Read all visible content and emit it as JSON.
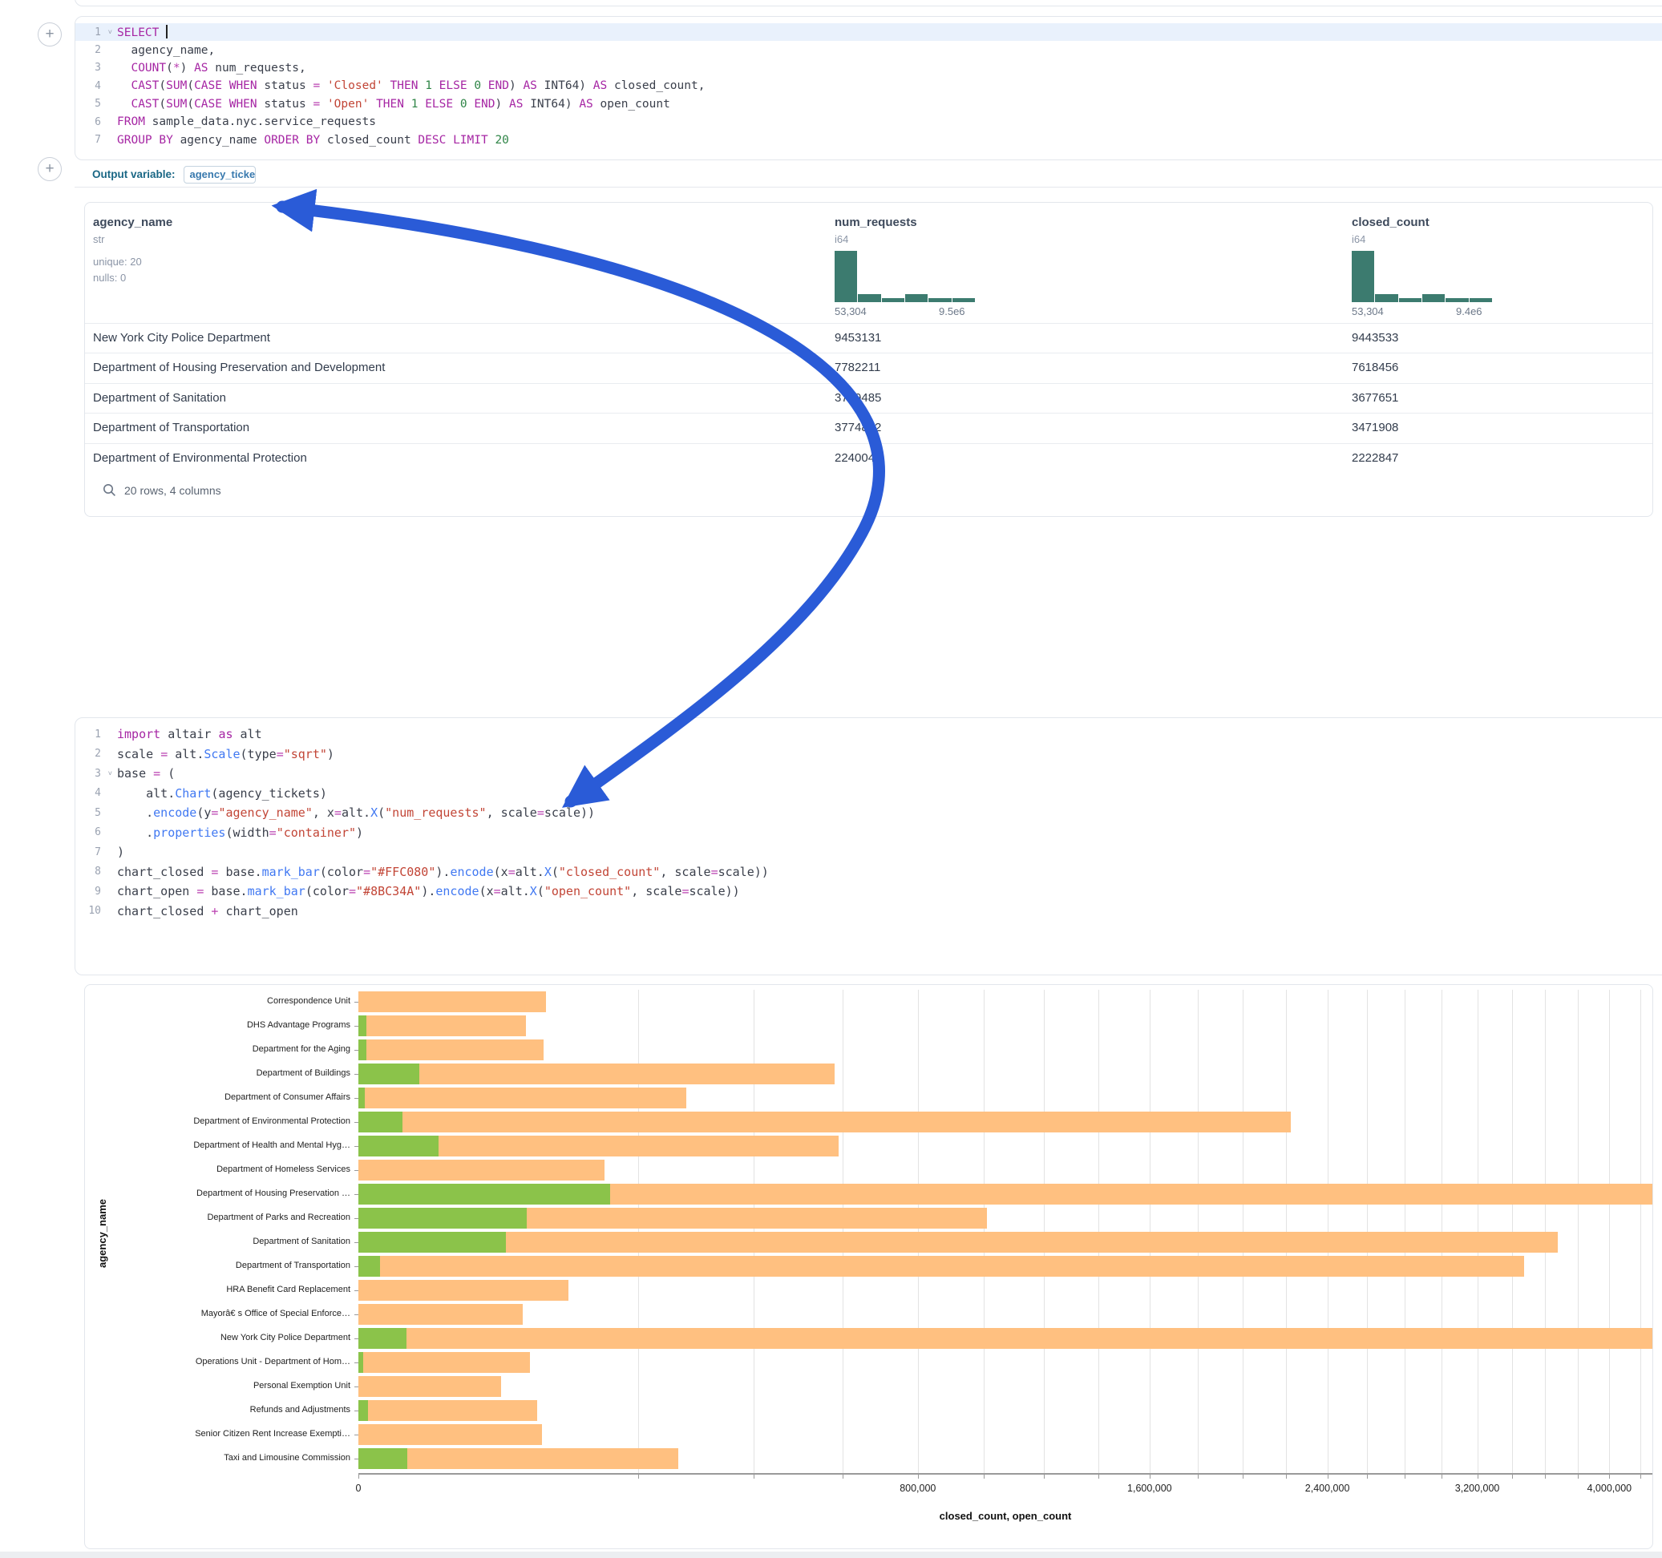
{
  "colors": {
    "bar_closed": "#FFC080",
    "bar_open": "#8BC34A",
    "histogram": "#3C7B6F",
    "arrow": "#2A5BD7",
    "active_line_bg": "#E9F1FC"
  },
  "sql_cell": {
    "lines": [
      {
        "n": "1",
        "fold": true,
        "active": true,
        "caret": true,
        "tokens": [
          [
            "kw",
            "SELECT"
          ],
          [
            "txt",
            " "
          ]
        ]
      },
      {
        "n": "2",
        "tokens": [
          [
            "txt",
            "  agency_name,"
          ]
        ]
      },
      {
        "n": "3",
        "tokens": [
          [
            "txt",
            "  "
          ],
          [
            "kw",
            "COUNT"
          ],
          [
            "txt",
            "("
          ],
          [
            "op",
            "*"
          ],
          [
            "txt",
            ") "
          ],
          [
            "kw",
            "AS"
          ],
          [
            "txt",
            " num_requests,"
          ]
        ]
      },
      {
        "n": "4",
        "tokens": [
          [
            "txt",
            "  "
          ],
          [
            "kw",
            "CAST"
          ],
          [
            "txt",
            "("
          ],
          [
            "kw",
            "SUM"
          ],
          [
            "txt",
            "("
          ],
          [
            "kw",
            "CASE"
          ],
          [
            "txt",
            " "
          ],
          [
            "kw",
            "WHEN"
          ],
          [
            "txt",
            " status "
          ],
          [
            "op",
            "="
          ],
          [
            "txt",
            " "
          ],
          [
            "str",
            "'Closed'"
          ],
          [
            "txt",
            " "
          ],
          [
            "kw",
            "THEN"
          ],
          [
            "txt",
            " "
          ],
          [
            "num",
            "1"
          ],
          [
            "txt",
            " "
          ],
          [
            "kw",
            "ELSE"
          ],
          [
            "txt",
            " "
          ],
          [
            "num",
            "0"
          ],
          [
            "txt",
            " "
          ],
          [
            "kw",
            "END"
          ],
          [
            "txt",
            ") "
          ],
          [
            "kw",
            "AS"
          ],
          [
            "txt",
            " INT64) "
          ],
          [
            "kw",
            "AS"
          ],
          [
            "txt",
            " closed_count,"
          ]
        ]
      },
      {
        "n": "5",
        "tokens": [
          [
            "txt",
            "  "
          ],
          [
            "kw",
            "CAST"
          ],
          [
            "txt",
            "("
          ],
          [
            "kw",
            "SUM"
          ],
          [
            "txt",
            "("
          ],
          [
            "kw",
            "CASE"
          ],
          [
            "txt",
            " "
          ],
          [
            "kw",
            "WHEN"
          ],
          [
            "txt",
            " status "
          ],
          [
            "op",
            "="
          ],
          [
            "txt",
            " "
          ],
          [
            "str",
            "'Open'"
          ],
          [
            "txt",
            " "
          ],
          [
            "kw",
            "THEN"
          ],
          [
            "txt",
            " "
          ],
          [
            "num",
            "1"
          ],
          [
            "txt",
            " "
          ],
          [
            "kw",
            "ELSE"
          ],
          [
            "txt",
            " "
          ],
          [
            "num",
            "0"
          ],
          [
            "txt",
            " "
          ],
          [
            "kw",
            "END"
          ],
          [
            "txt",
            ") "
          ],
          [
            "kw",
            "AS"
          ],
          [
            "txt",
            " INT64) "
          ],
          [
            "kw",
            "AS"
          ],
          [
            "txt",
            " open_count"
          ]
        ]
      },
      {
        "n": "6",
        "tokens": [
          [
            "kw",
            "FROM"
          ],
          [
            "txt",
            " sample_data.nyc.service_requests"
          ]
        ]
      },
      {
        "n": "7",
        "tokens": [
          [
            "kw",
            "GROUP BY"
          ],
          [
            "txt",
            " agency_name "
          ],
          [
            "kw",
            "ORDER BY"
          ],
          [
            "txt",
            " closed_count "
          ],
          [
            "kw",
            "DESC"
          ],
          [
            "txt",
            " "
          ],
          [
            "kw",
            "LIMIT"
          ],
          [
            "txt",
            " "
          ],
          [
            "num",
            "20"
          ]
        ]
      }
    ]
  },
  "output_variable": {
    "label": "Output variable:",
    "value": "agency_tickets"
  },
  "table": {
    "columns": [
      {
        "name": "agency_name",
        "type": "str",
        "meta": [
          "unique: 20",
          "nulls: 0"
        ]
      },
      {
        "name": "num_requests",
        "type": "i64",
        "hist": [
          1,
          0.16,
          0.08,
          0.16,
          0.08,
          0.08
        ],
        "hist_min": "53,304",
        "hist_max": "9.5e6"
      },
      {
        "name": "closed_count",
        "type": "i64",
        "hist": [
          1,
          0.16,
          0.08,
          0.16,
          0.08,
          0.08
        ],
        "hist_min": "53,304",
        "hist_max": "9.4e6"
      }
    ],
    "rows": [
      [
        "New York City Police Department",
        "9453131",
        "9443533"
      ],
      [
        "Department of Housing Preservation and Development",
        "7782211",
        "7618456"
      ],
      [
        "Department of Sanitation",
        "3749485",
        "3677651"
      ],
      [
        "Department of Transportation",
        "3774892",
        "3471908"
      ],
      [
        "Department of Environmental Protection",
        "2240041",
        "2222847"
      ]
    ],
    "footer": "20 rows, 4 columns"
  },
  "python_cell": {
    "lines": [
      {
        "n": "1",
        "tokens": [
          [
            "kw",
            "import"
          ],
          [
            "txt",
            " altair "
          ],
          [
            "kw",
            "as"
          ],
          [
            "txt",
            " alt"
          ]
        ]
      },
      {
        "n": "2",
        "tokens": [
          [
            "txt",
            "scale "
          ],
          [
            "op",
            "="
          ],
          [
            "txt",
            " alt."
          ],
          [
            "fn",
            "Scale"
          ],
          [
            "txt",
            "(type"
          ],
          [
            "op",
            "="
          ],
          [
            "str",
            "\"sqrt\""
          ],
          [
            "txt",
            ")"
          ]
        ]
      },
      {
        "n": "3",
        "fold": true,
        "tokens": [
          [
            "txt",
            "base "
          ],
          [
            "op",
            "="
          ],
          [
            "txt",
            " ("
          ]
        ]
      },
      {
        "n": "4",
        "tokens": [
          [
            "txt",
            "    alt."
          ],
          [
            "fn",
            "Chart"
          ],
          [
            "txt",
            "(agency_tickets)"
          ]
        ]
      },
      {
        "n": "5",
        "tokens": [
          [
            "txt",
            "    ."
          ],
          [
            "fn",
            "encode"
          ],
          [
            "txt",
            "(y"
          ],
          [
            "op",
            "="
          ],
          [
            "str",
            "\"agency_name\""
          ],
          [
            "txt",
            ", x"
          ],
          [
            "op",
            "="
          ],
          [
            "txt",
            "alt."
          ],
          [
            "fn",
            "X"
          ],
          [
            "txt",
            "("
          ],
          [
            "str",
            "\"num_requests\""
          ],
          [
            "txt",
            ", scale"
          ],
          [
            "op",
            "="
          ],
          [
            "txt",
            "scale))"
          ]
        ]
      },
      {
        "n": "6",
        "tokens": [
          [
            "txt",
            "    ."
          ],
          [
            "fn",
            "properties"
          ],
          [
            "txt",
            "(width"
          ],
          [
            "op",
            "="
          ],
          [
            "str",
            "\"container\""
          ],
          [
            "txt",
            ")"
          ]
        ]
      },
      {
        "n": "7",
        "tokens": [
          [
            "txt",
            ")"
          ]
        ]
      },
      {
        "n": "8",
        "tokens": [
          [
            "txt",
            "chart_closed "
          ],
          [
            "op",
            "="
          ],
          [
            "txt",
            " base."
          ],
          [
            "fn",
            "mark_bar"
          ],
          [
            "txt",
            "(color"
          ],
          [
            "op",
            "="
          ],
          [
            "str",
            "\"#FFC080\""
          ],
          [
            "txt",
            ")."
          ],
          [
            "fn",
            "encode"
          ],
          [
            "txt",
            "(x"
          ],
          [
            "op",
            "="
          ],
          [
            "txt",
            "alt."
          ],
          [
            "fn",
            "X"
          ],
          [
            "txt",
            "("
          ],
          [
            "str",
            "\"closed_count\""
          ],
          [
            "txt",
            ", scale"
          ],
          [
            "op",
            "="
          ],
          [
            "txt",
            "scale))"
          ]
        ]
      },
      {
        "n": "9",
        "tokens": [
          [
            "txt",
            "chart_open "
          ],
          [
            "op",
            "="
          ],
          [
            "txt",
            " base."
          ],
          [
            "fn",
            "mark_bar"
          ],
          [
            "txt",
            "(color"
          ],
          [
            "op",
            "="
          ],
          [
            "str",
            "\"#8BC34A\""
          ],
          [
            "txt",
            ")."
          ],
          [
            "fn",
            "encode"
          ],
          [
            "txt",
            "(x"
          ],
          [
            "op",
            "="
          ],
          [
            "txt",
            "alt."
          ],
          [
            "fn",
            "X"
          ],
          [
            "txt",
            "("
          ],
          [
            "str",
            "\"open_count\""
          ],
          [
            "txt",
            ", scale"
          ],
          [
            "op",
            "="
          ],
          [
            "txt",
            "scale))"
          ]
        ]
      },
      {
        "n": "10",
        "tokens": [
          [
            "txt",
            "chart_closed "
          ],
          [
            "op",
            "+"
          ],
          [
            "txt",
            " chart_open"
          ]
        ]
      }
    ]
  },
  "chart_data": {
    "type": "bar",
    "orientation": "horizontal",
    "xlabel": "closed_count, open_count",
    "ylabel": "agency_name",
    "x_scale": "sqrt",
    "x_axis_max": 4280000,
    "x_ticks_labeled": [
      0,
      800000,
      1600000,
      2400000,
      3200000,
      4000000
    ],
    "grid_step": 200000,
    "legend_position": "none",
    "grid": true,
    "categories": [
      "Correspondence Unit",
      "DHS Advantage Programs",
      "Department for the Aging",
      "Department of Buildings",
      "Department of Consumer Affairs",
      "Department of Environmental Protection",
      "Department of Health and Mental Hyg…",
      "Department of Homeless Services",
      "Department of Housing Preservation …",
      "Department of Parks and Recreation",
      "Department of Sanitation",
      "Department of Transportation",
      "HRA Benefit Card Replacement",
      "Mayorâ€ s Office of Special Enforce…",
      "New York City Police Department",
      "Operations Unit - Department of Hom…",
      "Personal Exemption Unit",
      "Refunds and Adjustments",
      "Senior Citizen Rent Increase Exempti…",
      "Taxi and Limousine Commission"
    ],
    "series": [
      {
        "name": "closed_count",
        "color": "#FFC080",
        "values": [
          90000,
          72000,
          88000,
          580000,
          275000,
          2222847,
          590000,
          155000,
          7618456,
          1009000,
          3677651,
          3471908,
          113000,
          69000,
          9443533,
          75000,
          52000,
          82000,
          86000,
          261000
        ]
      },
      {
        "name": "open_count",
        "color": "#8BC34A",
        "values": [
          0,
          160,
          160,
          9600,
          100,
          5000,
          16300,
          0,
          162000,
          72400,
          55600,
          1200,
          0,
          0,
          5900,
          60,
          0,
          240,
          0,
          6100
        ]
      }
    ]
  }
}
